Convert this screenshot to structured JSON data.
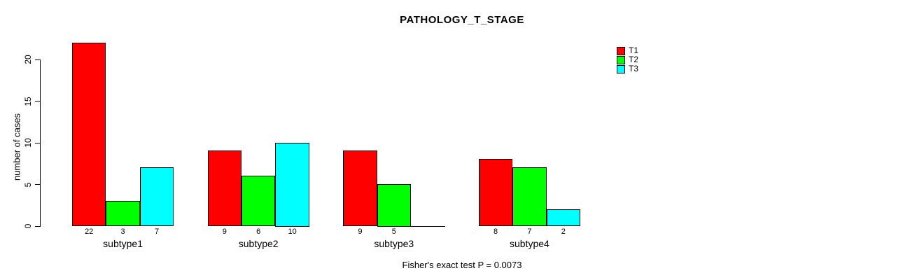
{
  "chart_data": {
    "type": "bar",
    "title": "PATHOLOGY_T_STAGE",
    "xlabel": "",
    "ylabel": "number of cases",
    "categories": [
      "subtype1",
      "subtype2",
      "subtype3",
      "subtype4"
    ],
    "series": [
      {
        "name": "T1",
        "color": "#ff0000",
        "values": [
          22,
          9,
          9,
          8
        ]
      },
      {
        "name": "T2",
        "color": "#00ff00",
        "values": [
          3,
          6,
          5,
          7
        ]
      },
      {
        "name": "T3",
        "color": "#00ffff",
        "values": [
          7,
          10,
          0,
          2
        ]
      }
    ],
    "bar_value_labels": [
      [
        "22",
        "3",
        "7"
      ],
      [
        "9",
        "6",
        "10"
      ],
      [
        "9",
        "5",
        ""
      ],
      [
        "8",
        "7",
        "2"
      ]
    ],
    "yticks": [
      0,
      5,
      10,
      15,
      20
    ],
    "ytick_labels": [
      "0",
      "5",
      "10",
      "15",
      "20"
    ],
    "ylim": [
      0,
      22
    ],
    "grid": false,
    "legend_position": "top-right",
    "legend_entries": [
      "T1",
      "T2",
      "T3"
    ],
    "annotation": "Fisher's exact test P = 0.0073"
  }
}
